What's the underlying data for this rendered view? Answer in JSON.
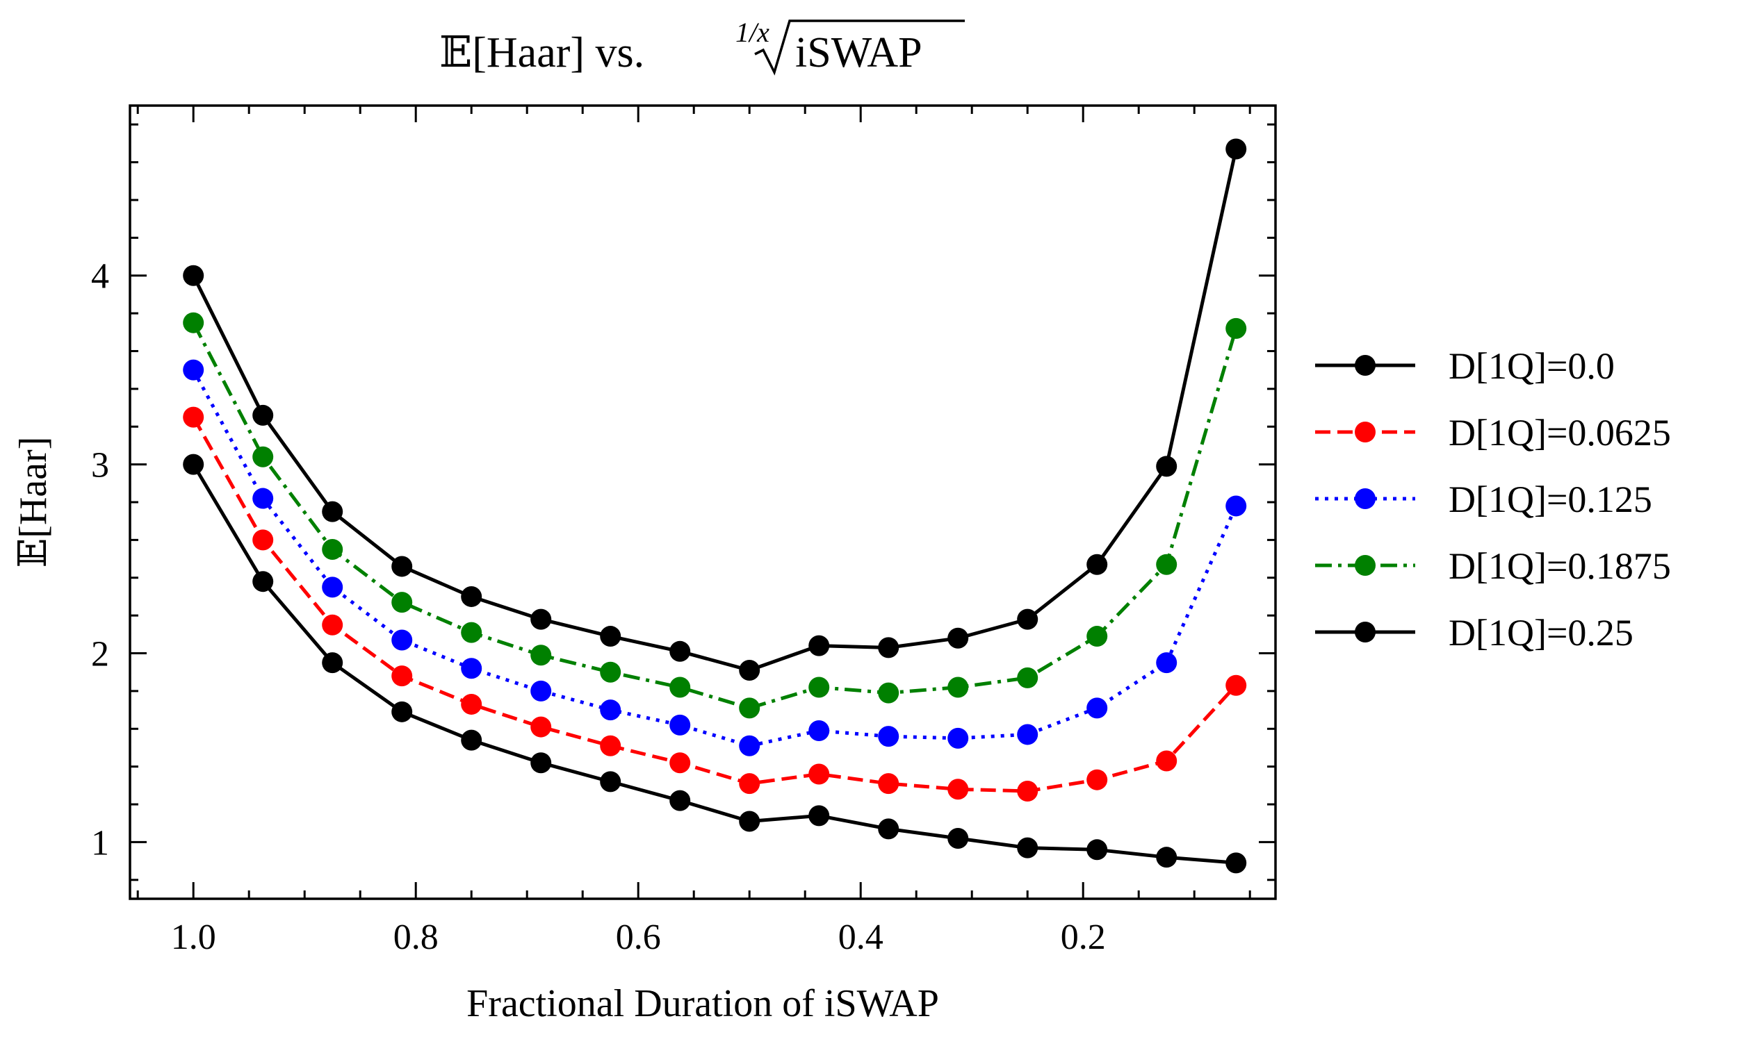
{
  "chart_data": {
    "type": "line",
    "title": {
      "prefix": "𝔼[Haar] vs.",
      "root_index": "1/x",
      "radicand": "iSWAP"
    },
    "xlabel": "Fractional Duration of iSWAP",
    "ylabel": "𝔼[Haar]",
    "xlim": [
      1.057,
      0.027
    ],
    "ylim": [
      0.7,
      4.9
    ],
    "x_inverted": true,
    "xticks": [
      1.0,
      0.8,
      0.6,
      0.4,
      0.2
    ],
    "xtick_labels": [
      "1.0",
      "0.8",
      "0.6",
      "0.4",
      "0.2"
    ],
    "yticks": [
      1,
      2,
      3,
      4
    ],
    "ytick_labels": [
      "1",
      "2",
      "3",
      "4"
    ],
    "grid": false,
    "legend_position": "outside-right",
    "x": [
      1.0,
      0.9375,
      0.875,
      0.8125,
      0.75,
      0.6875,
      0.625,
      0.5625,
      0.5,
      0.4375,
      0.375,
      0.3125,
      0.25,
      0.1875,
      0.125,
      0.0625
    ],
    "series": [
      {
        "name": "D[1Q]=0.0",
        "color": "#000000",
        "style": "solid",
        "values": [
          3.0,
          2.38,
          1.95,
          1.69,
          1.54,
          1.42,
          1.32,
          1.22,
          1.11,
          1.14,
          1.07,
          1.02,
          0.97,
          0.96,
          0.92,
          0.89
        ]
      },
      {
        "name": "D[1Q]=0.0625",
        "color": "#ff0000",
        "style": "dashed",
        "values": [
          3.25,
          2.6,
          2.15,
          1.88,
          1.73,
          1.61,
          1.51,
          1.42,
          1.31,
          1.36,
          1.31,
          1.28,
          1.27,
          1.33,
          1.43,
          1.83
        ]
      },
      {
        "name": "D[1Q]=0.125",
        "color": "#0000ff",
        "style": "dotted",
        "values": [
          3.5,
          2.82,
          2.35,
          2.07,
          1.92,
          1.8,
          1.7,
          1.62,
          1.51,
          1.59,
          1.56,
          1.55,
          1.57,
          1.71,
          1.95,
          2.78
        ]
      },
      {
        "name": "D[1Q]=0.1875",
        "color": "#008000",
        "style": "dashdot",
        "values": [
          3.75,
          3.04,
          2.55,
          2.27,
          2.11,
          1.99,
          1.9,
          1.82,
          1.71,
          1.82,
          1.79,
          1.82,
          1.87,
          2.09,
          2.47,
          3.72
        ]
      },
      {
        "name": "D[1Q]=0.25",
        "color": "#000000",
        "style": "solid",
        "values": [
          4.0,
          3.26,
          2.75,
          2.46,
          2.3,
          2.18,
          2.09,
          2.01,
          1.91,
          2.04,
          2.03,
          2.08,
          2.18,
          2.47,
          2.99,
          4.67
        ]
      }
    ]
  }
}
